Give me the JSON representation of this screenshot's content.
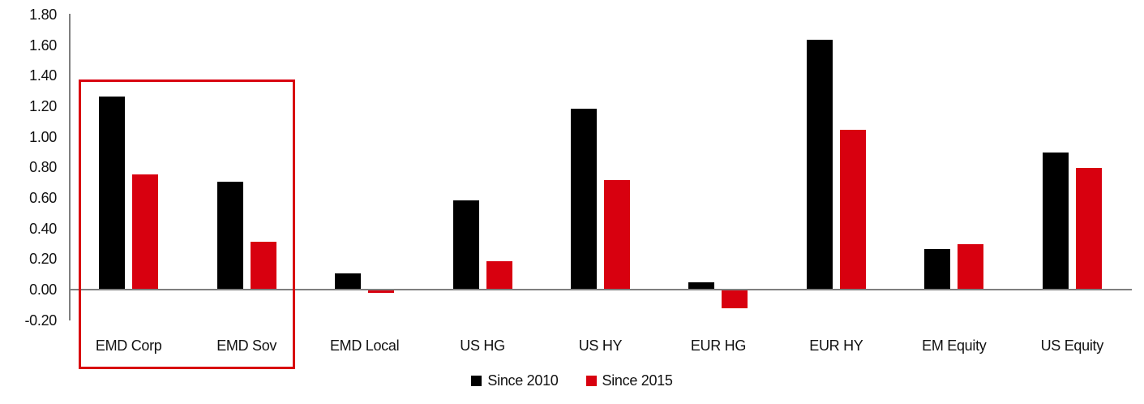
{
  "chart_data": {
    "type": "bar",
    "categories": [
      "EMD Corp",
      "EMD Sov",
      "EMD Local",
      "US HG",
      "US HY",
      "EUR HG",
      "EUR HY",
      "EM Equity",
      "US Equity"
    ],
    "series": [
      {
        "name": "Since 2010",
        "color": "#000000",
        "values": [
          1.26,
          0.7,
          0.1,
          0.58,
          1.18,
          0.04,
          1.63,
          0.26,
          0.89
        ]
      },
      {
        "name": "Since 2015",
        "color": "#d8000f",
        "values": [
          0.75,
          0.31,
          -0.02,
          0.18,
          0.71,
          -0.12,
          1.04,
          0.29,
          0.79
        ]
      }
    ],
    "title": "",
    "xlabel": "",
    "ylabel": "",
    "ylim": [
      -0.2,
      1.8
    ],
    "ytick_step": 0.2,
    "ytick_labels": [
      "1.80",
      "1.60",
      "1.40",
      "1.20",
      "1.00",
      "0.80",
      "0.60",
      "0.40",
      "0.20",
      "0.00",
      "-0.20"
    ],
    "grid": false,
    "legend_position": "bottom-center",
    "annotation": {
      "shape": "rect",
      "highlighted_categories": [
        "EMD Corp",
        "EMD Sov"
      ],
      "color": "#d8000f"
    }
  },
  "legend": {
    "items": [
      {
        "label": "Since 2010",
        "color": "#000000"
      },
      {
        "label": "Since 2015",
        "color": "#d8000f"
      }
    ]
  },
  "colors": {
    "axis_line": "#7f7f7f",
    "series_since_2010": "#000000",
    "series_since_2015": "#d8000f",
    "annotation_box": "#d8000f"
  }
}
